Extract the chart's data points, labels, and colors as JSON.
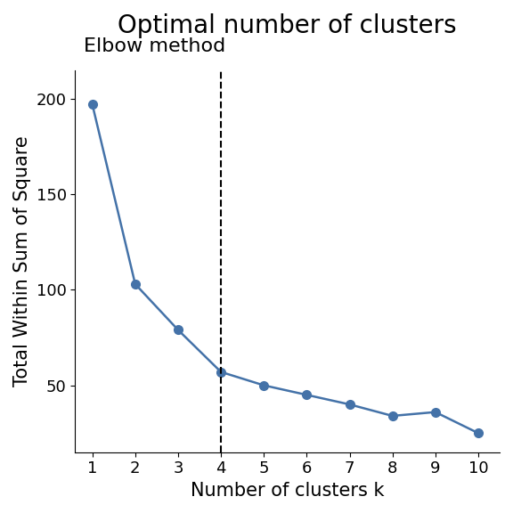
{
  "title": "Optimal number of clusters",
  "subtitle": "Elbow method",
  "xlabel": "Number of clusters k",
  "ylabel": "Total Within Sum of Square",
  "x": [
    1,
    2,
    3,
    4,
    5,
    6,
    7,
    8,
    9,
    10
  ],
  "y": [
    197,
    103,
    79,
    57,
    50,
    45,
    40,
    34,
    36,
    25
  ],
  "line_color": "#4472a8",
  "marker_color": "#4472a8",
  "vline_x": 4,
  "vline_style": "--",
  "vline_color": "black",
  "ylim": [
    15,
    215
  ],
  "xlim": [
    0.6,
    10.5
  ],
  "yticks": [
    50,
    100,
    150,
    200
  ],
  "xticks": [
    1,
    2,
    3,
    4,
    5,
    6,
    7,
    8,
    9,
    10
  ],
  "title_fontsize": 20,
  "subtitle_fontsize": 16,
  "label_fontsize": 15,
  "tick_fontsize": 13,
  "marker_size": 7,
  "line_width": 1.8
}
